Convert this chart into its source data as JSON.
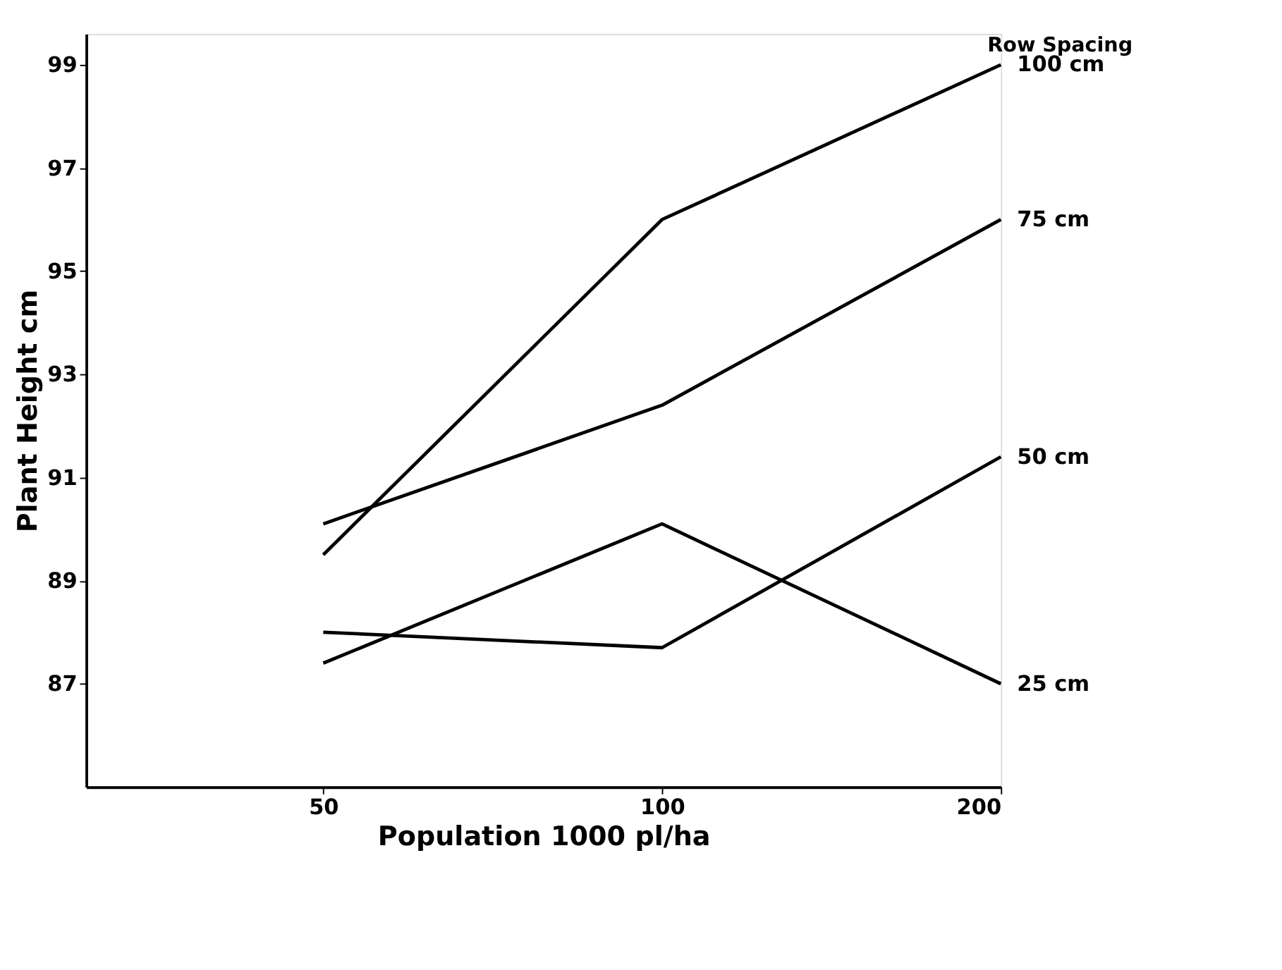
{
  "chart_data": {
    "type": "line",
    "xlabel": "Population 1000 pl/ha",
    "ylabel": "Plant Height cm",
    "legend_title": "Row Spacing",
    "categories": [
      "50",
      "100",
      "200"
    ],
    "series": [
      {
        "name": "100 cm",
        "color": "#000000",
        "values": [
          89.5,
          96.0,
          99.0
        ]
      },
      {
        "name": "75 cm",
        "color": "#000000",
        "values": [
          90.1,
          92.4,
          96.0
        ]
      },
      {
        "name": "50 cm",
        "color": "#000000",
        "values": [
          88.0,
          87.7,
          91.4
        ]
      },
      {
        "name": "25 cm",
        "color": "#000000",
        "values": [
          87.4,
          90.1,
          87.0
        ]
      }
    ],
    "ylim": [
      85,
      99.6
    ],
    "yticks": [
      87,
      89,
      91,
      93,
      95,
      97,
      99
    ],
    "grid": false,
    "legend": "right",
    "marker": "none",
    "line_style": "solid"
  }
}
